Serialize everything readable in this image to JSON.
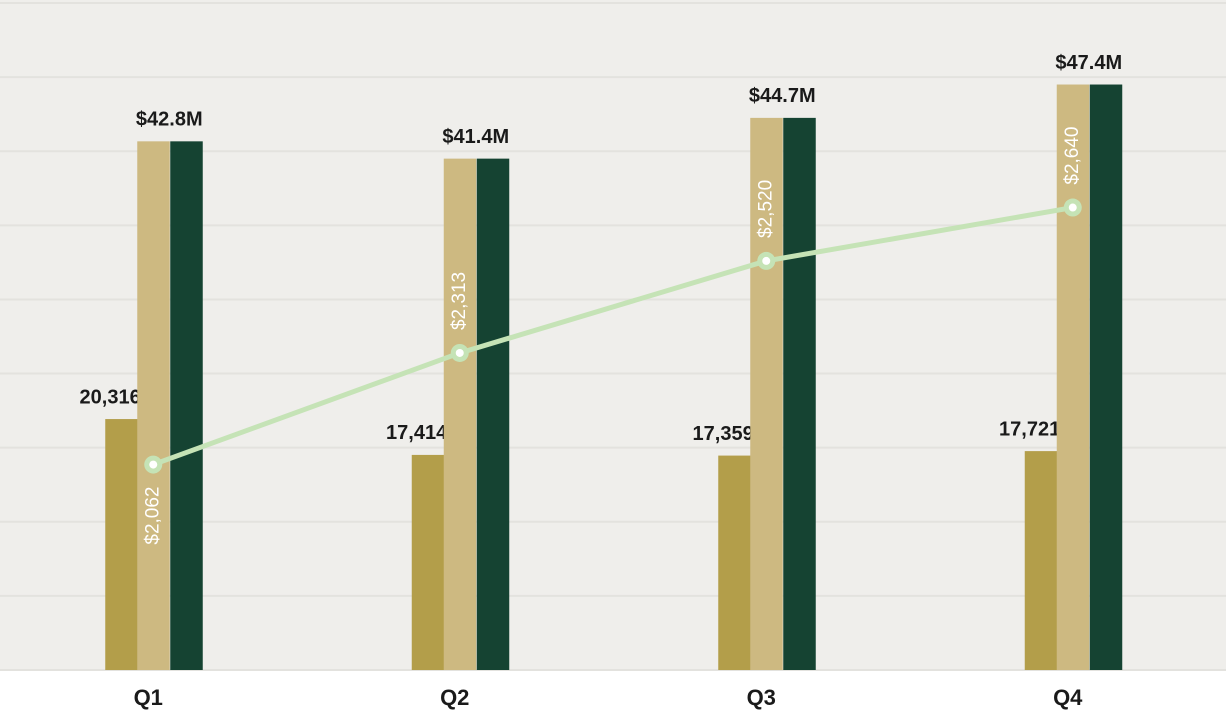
{
  "chart_data": {
    "type": "bar",
    "categories": [
      "Q1",
      "Q2",
      "Q3",
      "Q4"
    ],
    "ylim": [
      0,
      54
    ],
    "yticks": [
      0,
      6,
      12,
      18,
      24,
      30,
      36,
      42,
      48,
      54
    ],
    "grid": true,
    "y2lim": [
      0,
      54000
    ],
    "y3lim": [
      1600,
      3100
    ],
    "series": [
      {
        "type": "bar",
        "axis": "y2",
        "color": "#b39e4a",
        "values": [
          20316,
          17414,
          17359,
          17721
        ],
        "value_labels": [
          "20,316oz",
          "17,414oz",
          "17,359oz",
          "17,721oz"
        ]
      },
      {
        "type": "bar",
        "color": "#cdb981",
        "values": [
          42.8,
          41.4,
          44.7,
          47.4
        ],
        "value_labels": [
          "$42.8M",
          "$41.4M",
          "$44.7M",
          "$47.4M"
        ]
      },
      {
        "type": "bar",
        "color": "#154332",
        "values": [
          42.8,
          41.4,
          44.7,
          47.4
        ]
      },
      {
        "type": "line",
        "axis": "y3",
        "color": "#c5e3b6",
        "values": [
          2062,
          2313,
          2520,
          2640
        ],
        "value_labels": [
          "$2,062",
          "$2,313",
          "$2,520",
          "$2,640"
        ]
      }
    ]
  }
}
